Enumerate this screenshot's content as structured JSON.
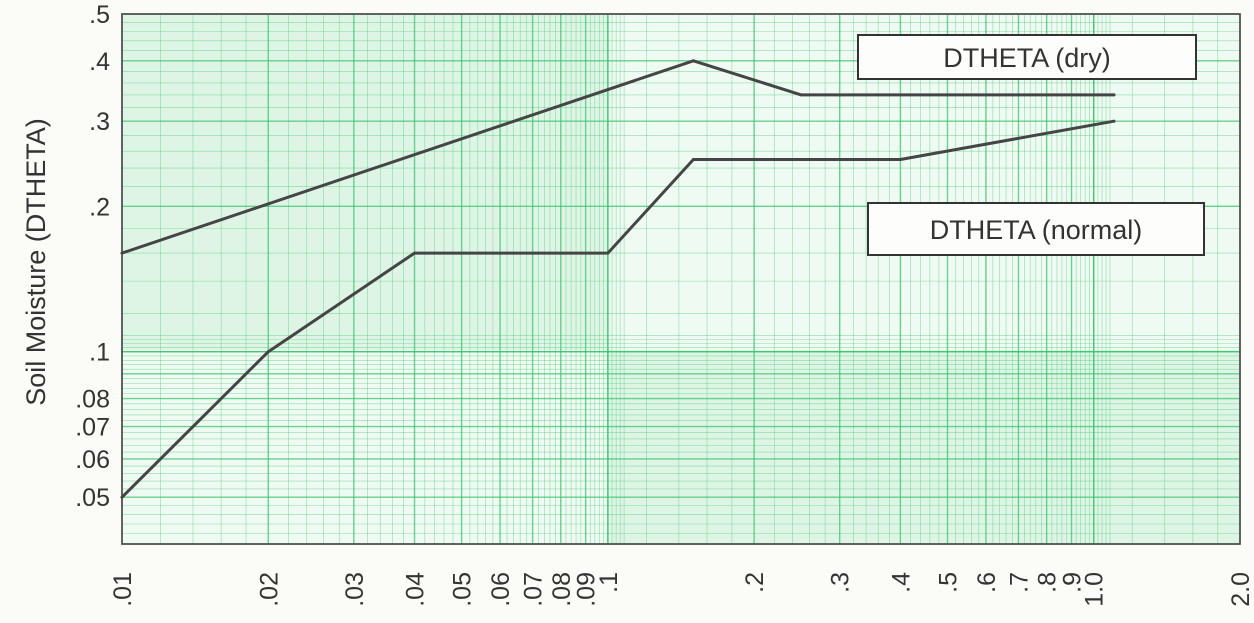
{
  "chart_data": {
    "type": "line",
    "ylabel": "Soil Moisture (DTHETA)",
    "xlabel": "",
    "x_scale": "log",
    "y_scale": "log",
    "xlim": [
      0.01,
      2.0
    ],
    "ylim": [
      0.04,
      0.5
    ],
    "grid": true,
    "x_ticks": [
      {
        "value": 0.01,
        "label": ".01"
      },
      {
        "value": 0.02,
        "label": ".02"
      },
      {
        "value": 0.03,
        "label": ".03"
      },
      {
        "value": 0.04,
        "label": ".04"
      },
      {
        "value": 0.05,
        "label": ".05"
      },
      {
        "value": 0.06,
        "label": ".06"
      },
      {
        "value": 0.07,
        "label": ".07"
      },
      {
        "value": 0.08,
        "label": ".08"
      },
      {
        "value": 0.09,
        "label": ".09"
      },
      {
        "value": 0.1,
        "label": ".1"
      },
      {
        "value": 0.2,
        "label": ".2"
      },
      {
        "value": 0.3,
        "label": ".3"
      },
      {
        "value": 0.4,
        "label": ".4"
      },
      {
        "value": 0.5,
        "label": ".5"
      },
      {
        "value": 0.6,
        "label": ".6"
      },
      {
        "value": 0.7,
        "label": ".7"
      },
      {
        "value": 0.8,
        "label": ".8"
      },
      {
        "value": 0.9,
        "label": ".9"
      },
      {
        "value": 1.0,
        "label": "1.0"
      },
      {
        "value": 2.0,
        "label": "2.0"
      }
    ],
    "y_ticks": [
      {
        "value": 0.05,
        "label": ".05"
      },
      {
        "value": 0.06,
        "label": ".06"
      },
      {
        "value": 0.07,
        "label": ".07"
      },
      {
        "value": 0.08,
        "label": ".08"
      },
      {
        "value": 0.1,
        "label": ".1"
      },
      {
        "value": 0.2,
        "label": ".2"
      },
      {
        "value": 0.3,
        "label": ".3"
      },
      {
        "value": 0.4,
        "label": ".4"
      },
      {
        "value": 0.5,
        "label": ".5"
      }
    ],
    "series": [
      {
        "name": "DTHETA (dry)",
        "x": [
          0.01,
          0.15,
          0.25,
          1.1
        ],
        "y": [
          0.16,
          0.4,
          0.34,
          0.34
        ]
      },
      {
        "name": "DTHETA (normal)",
        "x": [
          0.01,
          0.02,
          0.04,
          0.1,
          0.15,
          0.4,
          1.1
        ],
        "y": [
          0.05,
          0.1,
          0.16,
          0.16,
          0.25,
          0.25,
          0.3
        ]
      }
    ],
    "colors": {
      "grid": "#38c46e",
      "line": "#454545",
      "background": "#fbfbf7"
    }
  }
}
